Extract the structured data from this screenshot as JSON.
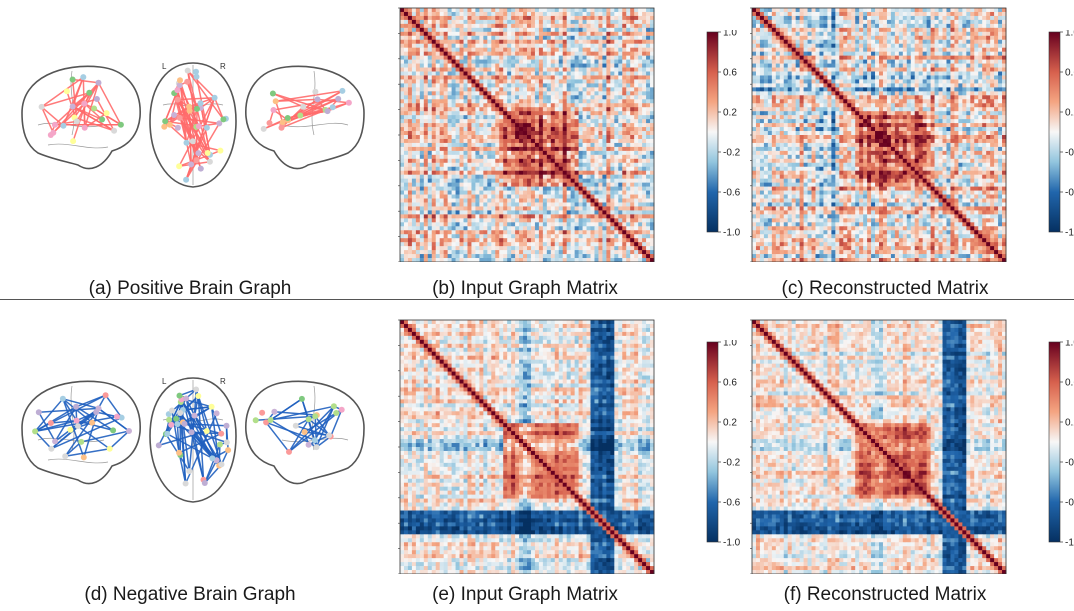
{
  "figure": {
    "rows": [
      {
        "brain_caption": "(a) Positive Brain Graph",
        "matrix_captions": [
          "(b) Input Graph Matrix",
          "(c) Reconstructed Matrix"
        ],
        "edge_color": "#ff6b6b",
        "edge_sign": "positive"
      },
      {
        "brain_caption": "(d) Negative Brain Graph",
        "matrix_captions": [
          "(e) Input Graph Matrix",
          "(f) Reconstructed Matrix"
        ],
        "edge_color": "#1f5fbf",
        "edge_sign": "negative"
      }
    ],
    "hemisphere_labels": {
      "left": "L",
      "right": "R"
    },
    "colorbar": {
      "ticks": [
        "1.0",
        "0.6",
        "0.2",
        "-0.2",
        "-0.6",
        "-1.0"
      ],
      "ticks_truncated": [
        "1.0",
        "0.6",
        "0.2",
        "-0.2",
        "-0.6",
        "-1.0"
      ],
      "colormap": "RdBu_r",
      "vmin": -1.0,
      "vmax": 1.0,
      "color_high": "#67001f",
      "color_mid": "#f7f7f7",
      "color_low": "#053061"
    },
    "node_colors": [
      "#7fc97f",
      "#beaed4",
      "#fdc086",
      "#ffff99",
      "#f4a6c8",
      "#a6cee3",
      "#b2df8a",
      "#cab2d6",
      "#fb9a99",
      "#d9d9d9"
    ]
  }
}
